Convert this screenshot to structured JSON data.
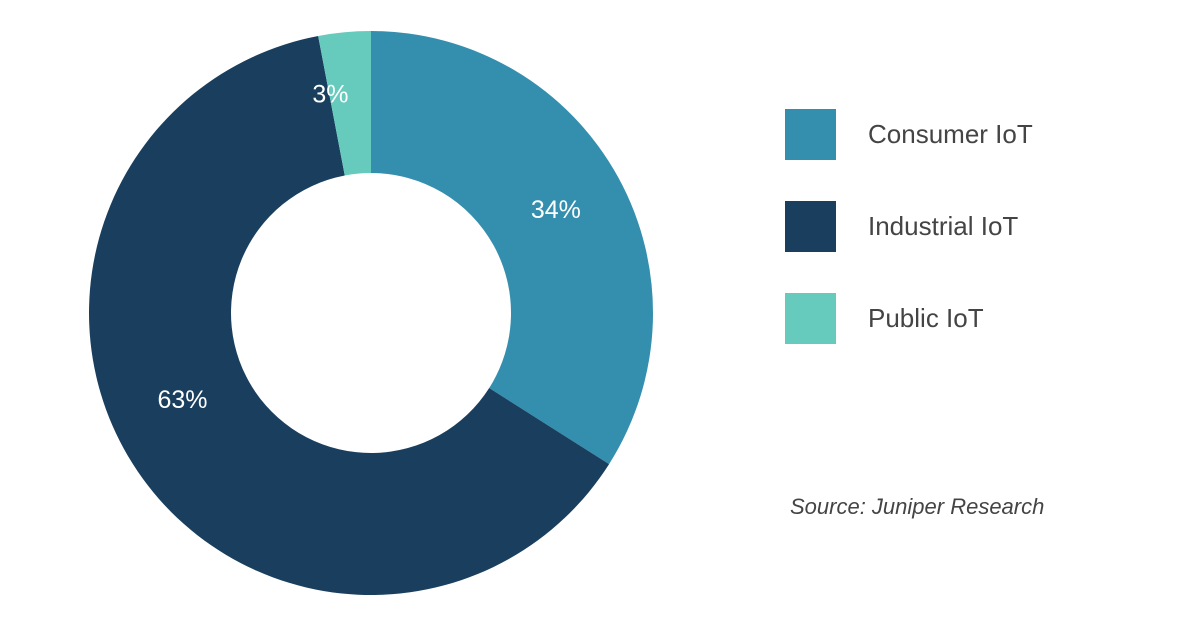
{
  "chart_data": {
    "type": "pie",
    "donut": true,
    "categories": [
      "Consumer IoT",
      "Industrial IoT",
      "Public IoT"
    ],
    "values": [
      34,
      63,
      3
    ],
    "data_labels": [
      "34%",
      "63%",
      "3%"
    ],
    "colors": [
      "#348fae",
      "#1a3f5e",
      "#66cbbd"
    ],
    "legend_placement": "right",
    "source": "Source: Juniper Research"
  }
}
